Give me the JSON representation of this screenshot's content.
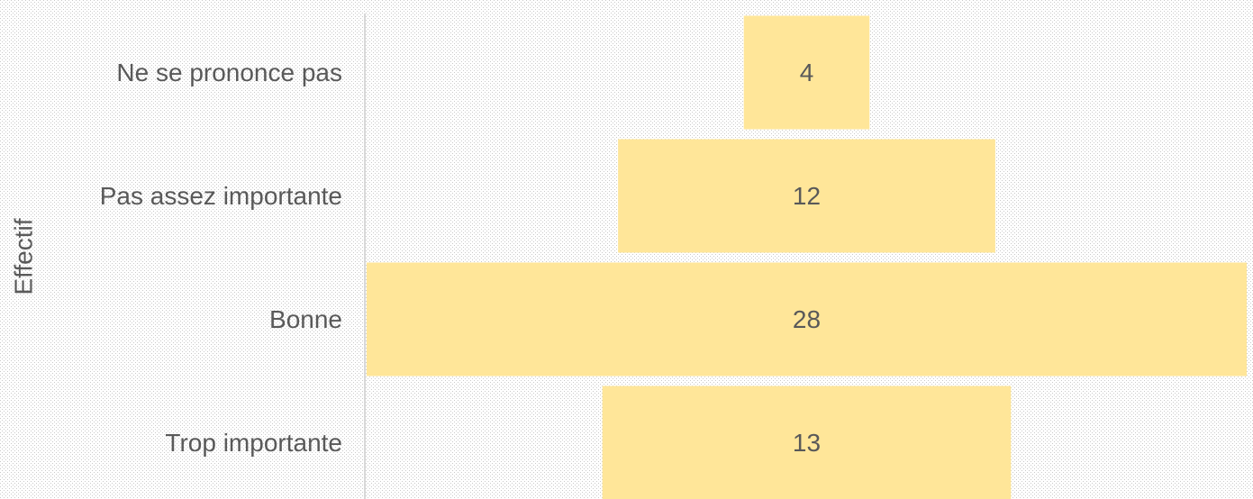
{
  "chart_data": {
    "type": "funnel",
    "y_label": "Effectif",
    "categories": [
      "Ne se prononce pas",
      "Pas assez importante",
      "Bonne",
      "Trop importante"
    ],
    "values": [
      4,
      12,
      28,
      13
    ],
    "color": "#ffe699"
  }
}
